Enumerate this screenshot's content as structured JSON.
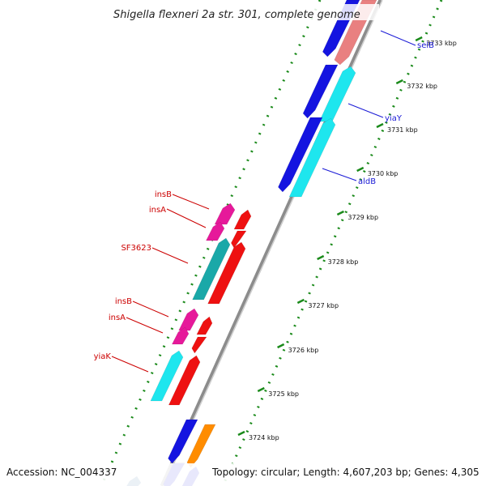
{
  "title": "Shigella flexneri 2a str. 301, complete genome",
  "footer": {
    "accession": "Accession: NC_004337",
    "topology": "Topology: circular; Length: 4,607,203 bp; Genes: 4,305"
  },
  "ticks": [
    {
      "label": "3733 kbp"
    },
    {
      "label": "3732 kbp"
    },
    {
      "label": "3731 kbp"
    },
    {
      "label": "3730 kbp"
    },
    {
      "label": "3729 kbp"
    },
    {
      "label": "3728 kbp"
    },
    {
      "label": "3727 kbp"
    },
    {
      "label": "3726 kbp"
    },
    {
      "label": "3725 kbp"
    },
    {
      "label": "3724 kbp"
    }
  ],
  "gene_labels_right": [
    {
      "label": "selB",
      "color": "#1a1ad6"
    },
    {
      "label": "yiaY",
      "color": "#1a1ad6"
    },
    {
      "label": "aldB",
      "color": "#1a1ad6"
    }
  ],
  "gene_labels_left": [
    {
      "label": "insB",
      "color": "#cc0000"
    },
    {
      "label": "insA",
      "color": "#cc0000"
    },
    {
      "label": "SF3623",
      "color": "#cc0000"
    },
    {
      "label": "insB",
      "color": "#cc0000"
    },
    {
      "label": "insA",
      "color": "#cc0000"
    },
    {
      "label": "yiaK",
      "color": "#cc0000"
    }
  ],
  "colors": {
    "backbone": "#8c8c8c",
    "tick_green": "#1a8a1a",
    "blue": "#1414e0",
    "cyan": "#1ee6ee",
    "red": "#ee1111",
    "magenta": "#e6199a",
    "teal": "#1aa8a8",
    "pink": "#e98080",
    "orange": "#ff8c00"
  }
}
